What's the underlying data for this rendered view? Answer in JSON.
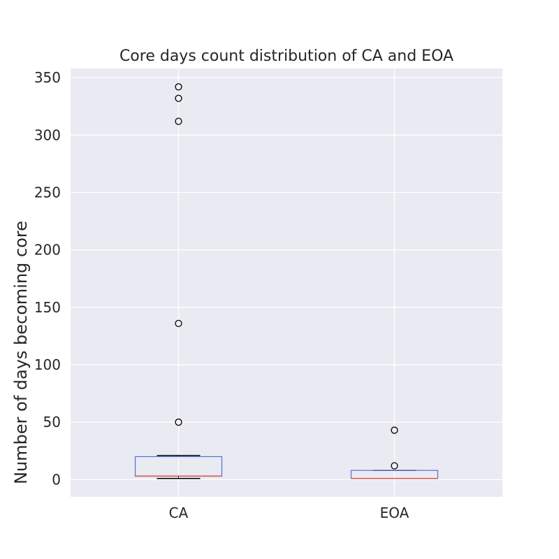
{
  "chart_data": {
    "type": "box",
    "title": "Core days count distribution of CA and EOA",
    "xlabel": "",
    "ylabel": "Number of days becoming core",
    "ylim": [
      -15,
      358
    ],
    "yticks": [
      0,
      50,
      100,
      150,
      200,
      250,
      300,
      350
    ],
    "grid": true,
    "categories": [
      "CA",
      "EOA"
    ],
    "boxes": [
      {
        "category": "CA",
        "whisker_low": 1,
        "q1": 3,
        "median": 3,
        "q3": 20,
        "whisker_high": 21,
        "outliers": [
          50,
          136,
          312,
          332,
          342
        ]
      },
      {
        "category": "EOA",
        "whisker_low": 1,
        "q1": 1,
        "median": 1,
        "q3": 8,
        "whisker_high": 8,
        "outliers": [
          12,
          43
        ]
      }
    ],
    "colors": {
      "background": "#eaeaf2",
      "grid": "#ffffff",
      "box": "#4c72d8",
      "median": "#d9534f",
      "whisker": "#000000",
      "outlier": "#000000"
    }
  }
}
